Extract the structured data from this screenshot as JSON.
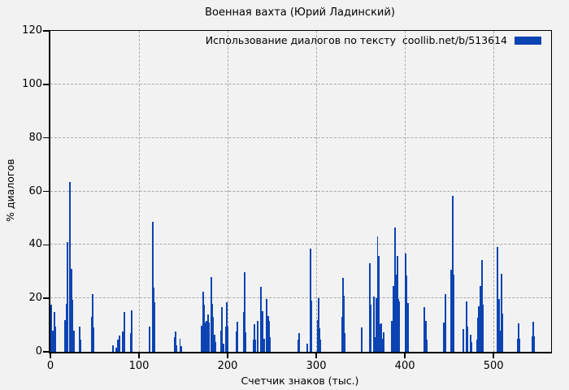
{
  "figure": {
    "background": "#f2f2f2",
    "frame_color": "#000000"
  },
  "chart_data": {
    "type": "bar",
    "title": "Военная вахта (Юрий Ладинский)",
    "xlabel": "Счетчик знаков (тыс.)",
    "ylabel": "% диалогов",
    "xlim": [
      0,
      565
    ],
    "ylim": [
      0,
      120
    ],
    "xticks": [
      0,
      100,
      200,
      300,
      400,
      500
    ],
    "yticks": [
      0,
      20,
      40,
      60,
      80,
      100,
      120
    ],
    "grid": "dashed",
    "grid_color": "#a9a9a9",
    "bar_color": "#0b44b2",
    "legend": {
      "label": "Использование диалогов по тексту  coollib.net/b/513614",
      "position": "upper right",
      "swatch_color": "#0b44b2"
    },
    "points_format": "[x_thousand_chars, dialog_percent]",
    "points": [
      [
        1,
        17.5
      ],
      [
        3,
        8
      ],
      [
        4.3,
        15
      ],
      [
        5.3,
        9.5
      ],
      [
        16.5,
        12
      ],
      [
        18.3,
        18
      ],
      [
        19.7,
        41
      ],
      [
        22,
        63.5
      ],
      [
        23.9,
        31
      ],
      [
        25.2,
        19.5
      ],
      [
        26.6,
        8
      ],
      [
        33,
        9.5
      ],
      [
        34.3,
        4.5
      ],
      [
        46.4,
        13
      ],
      [
        47.7,
        21.5
      ],
      [
        49,
        9
      ],
      [
        71,
        2.5
      ],
      [
        74.5,
        1.5
      ],
      [
        76.5,
        4.5
      ],
      [
        77.7,
        6
      ],
      [
        82,
        7.5
      ],
      [
        83.2,
        15
      ],
      [
        90.5,
        7
      ],
      [
        91.8,
        15.5
      ],
      [
        112,
        9.5
      ],
      [
        115.6,
        48.5
      ],
      [
        116.7,
        24
      ],
      [
        117.7,
        18.5
      ],
      [
        140,
        5.5
      ],
      [
        141.2,
        7.5
      ],
      [
        142.4,
        2.5
      ],
      [
        146.3,
        5
      ],
      [
        147.5,
        2
      ],
      [
        170.6,
        9.8
      ],
      [
        172.2,
        22.5
      ],
      [
        173.5,
        17.6
      ],
      [
        175,
        11
      ],
      [
        176.2,
        11.7
      ],
      [
        177.6,
        14
      ],
      [
        179,
        10.8
      ],
      [
        181.2,
        28
      ],
      [
        182.7,
        18
      ],
      [
        183.9,
        13.2
      ],
      [
        185.1,
        6.5
      ],
      [
        186.2,
        3.6
      ],
      [
        192.6,
        8
      ],
      [
        193.8,
        16.8
      ],
      [
        195,
        3
      ],
      [
        198.2,
        9.5
      ],
      [
        199.2,
        18.5
      ],
      [
        200.3,
        9.5
      ],
      [
        209.6,
        7.7
      ],
      [
        211,
        11.2
      ],
      [
        218.4,
        14.8
      ],
      [
        219.4,
        29.7
      ],
      [
        220.5,
        7.2
      ],
      [
        229.6,
        4.6
      ],
      [
        230.5,
        10.2
      ],
      [
        231.5,
        4.6
      ],
      [
        234.2,
        11.5
      ],
      [
        237.7,
        24.2
      ],
      [
        239.8,
        15.2
      ],
      [
        241,
        5
      ],
      [
        244.3,
        19.8
      ],
      [
        245.5,
        13.3
      ],
      [
        246.8,
        11.5
      ],
      [
        248,
        5.5
      ],
      [
        279.5,
        4.5
      ],
      [
        280.7,
        7
      ],
      [
        290,
        2.9
      ],
      [
        293.6,
        38.5
      ],
      [
        294.7,
        19
      ],
      [
        301.3,
        12
      ],
      [
        302.3,
        20
      ],
      [
        303.3,
        8.7
      ],
      [
        304.3,
        4.7
      ],
      [
        329,
        13
      ],
      [
        330.2,
        27.5
      ],
      [
        331.2,
        21
      ],
      [
        332.2,
        7
      ],
      [
        351.5,
        9
      ],
      [
        360.3,
        33.2
      ],
      [
        361.3,
        17.5
      ],
      [
        365.1,
        20.6
      ],
      [
        367,
        5.5
      ],
      [
        368.2,
        20
      ],
      [
        369.2,
        43.2
      ],
      [
        370.2,
        35.8
      ],
      [
        371.4,
        10.3
      ],
      [
        373.4,
        10.5
      ],
      [
        374.5,
        4.8
      ],
      [
        375.7,
        7.3
      ],
      [
        385.2,
        11.7
      ],
      [
        387,
        24.7
      ],
      [
        388.8,
        46.6
      ],
      [
        390,
        29
      ],
      [
        391.6,
        36
      ],
      [
        392.8,
        19.9
      ],
      [
        393.9,
        18.8
      ],
      [
        400.9,
        36.8
      ],
      [
        402,
        28.7
      ],
      [
        403.3,
        18.3
      ],
      [
        422.3,
        16.8
      ],
      [
        423.4,
        11.5
      ],
      [
        425,
        4.5
      ],
      [
        444.3,
        10.9
      ],
      [
        445.5,
        21.6
      ],
      [
        452.6,
        30.7
      ],
      [
        453.7,
        58.3
      ],
      [
        455,
        29
      ],
      [
        465.9,
        8.5
      ],
      [
        469.8,
        18.9
      ],
      [
        471,
        9.3
      ],
      [
        474.3,
        6.3
      ],
      [
        475.5,
        3.5
      ],
      [
        481.2,
        4.5
      ],
      [
        482.6,
        12.8
      ],
      [
        483.8,
        17.1
      ],
      [
        485,
        24.6
      ],
      [
        487,
        34.2
      ],
      [
        488.2,
        17.5
      ],
      [
        504.8,
        39.1
      ],
      [
        505.9,
        19.6
      ],
      [
        507.3,
        8
      ],
      [
        508.7,
        29.2
      ],
      [
        509.8,
        14.2
      ],
      [
        527.5,
        5
      ],
      [
        528.3,
        10.5
      ],
      [
        529.3,
        5
      ],
      [
        544,
        5.7
      ],
      [
        545.2,
        11.3
      ],
      [
        546.2,
        5.7
      ]
    ]
  }
}
